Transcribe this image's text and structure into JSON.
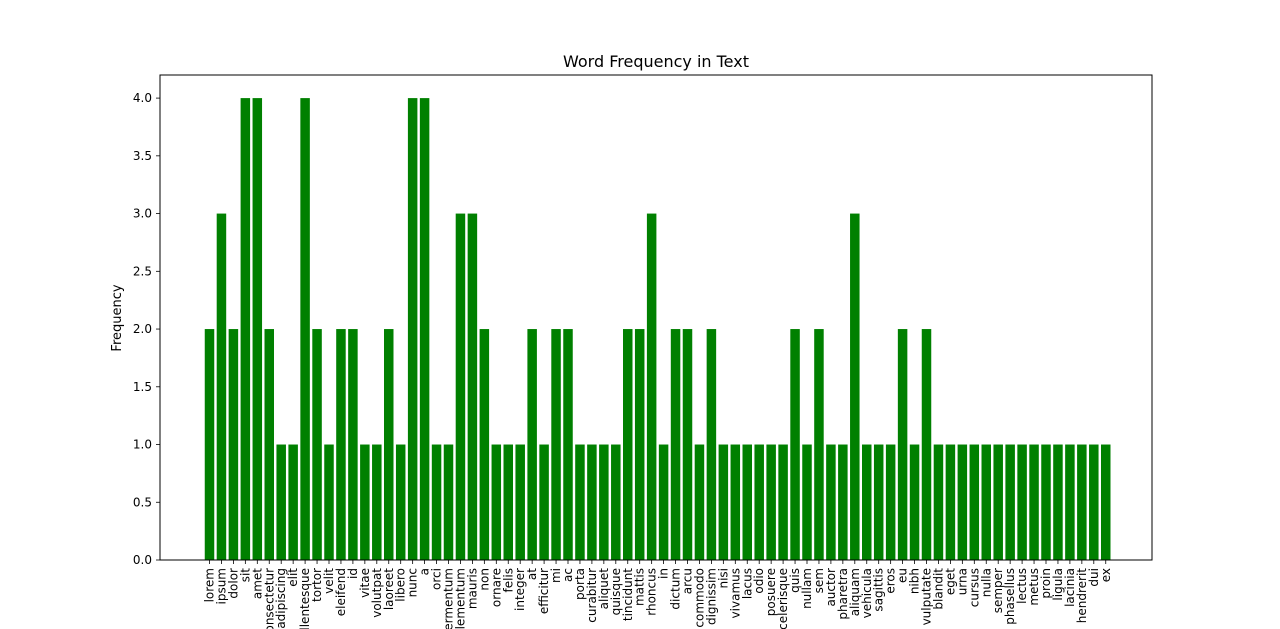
{
  "chart_data": {
    "type": "bar",
    "title": "Word Frequency in Text",
    "xlabel": "",
    "ylabel": "Frequency",
    "ylim": [
      0,
      4.2
    ],
    "yticks": [
      "0.0",
      "0.5",
      "1.0",
      "1.5",
      "2.0",
      "2.5",
      "3.0",
      "3.5",
      "4.0"
    ],
    "grid": false,
    "bar_color": "#008000",
    "categories": [
      "lorem",
      "ipsum",
      "dolor",
      "sit",
      "amet",
      "consectetur",
      "adipiscing",
      "elit",
      "pellentesque",
      "tortor",
      "velit",
      "eleifend",
      "id",
      "vitae",
      "volutpat",
      "laoreet",
      "libero",
      "nunc",
      "a",
      "orci",
      "fermentum",
      "elementum",
      "mauris",
      "non",
      "ornare",
      "felis",
      "integer",
      "at",
      "efficitur",
      "mi",
      "ac",
      "porta",
      "curabitur",
      "aliquet",
      "quisque",
      "tincidunt",
      "mattis",
      "rhoncus",
      "in",
      "dictum",
      "arcu",
      "commodo",
      "dignissim",
      "nisi",
      "vivamus",
      "lacus",
      "odio",
      "posuere",
      "scelerisque",
      "quis",
      "nullam",
      "sem",
      "auctor",
      "pharetra",
      "aliquam",
      "vehicula",
      "sagittis",
      "eros",
      "eu",
      "nibh",
      "vulputate",
      "blandit",
      "eget",
      "urna",
      "cursus",
      "nulla",
      "semper",
      "phasellus",
      "lectus",
      "metus",
      "proin",
      "ligula",
      "lacinia",
      "hendrerit",
      "dui",
      "ex"
    ],
    "values": [
      2,
      3,
      2,
      4,
      4,
      2,
      1,
      1,
      4,
      2,
      1,
      2,
      2,
      1,
      1,
      2,
      1,
      4,
      4,
      1,
      1,
      3,
      3,
      2,
      1,
      1,
      1,
      2,
      1,
      2,
      2,
      1,
      1,
      1,
      1,
      2,
      2,
      3,
      1,
      2,
      2,
      1,
      2,
      1,
      1,
      1,
      1,
      1,
      1,
      2,
      1,
      2,
      1,
      1,
      3,
      1,
      1,
      1,
      2,
      1,
      2,
      1,
      1,
      1,
      1,
      1,
      1,
      1,
      1,
      1,
      1,
      1,
      1,
      1,
      1,
      1
    ]
  }
}
